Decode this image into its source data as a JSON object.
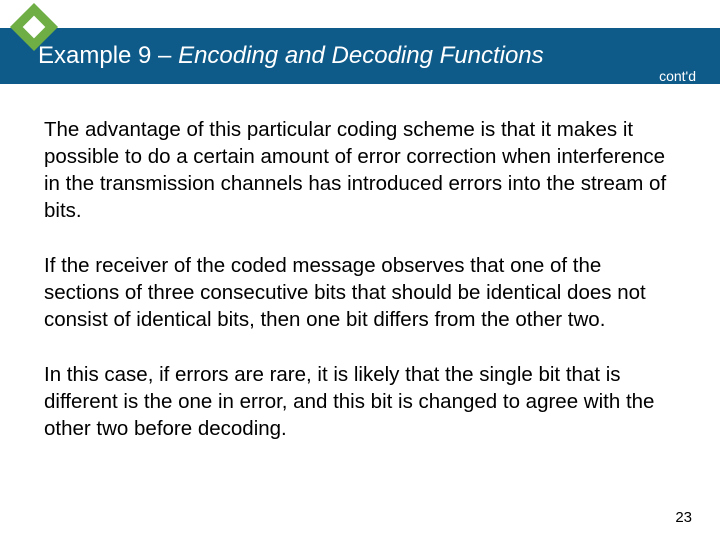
{
  "header": {
    "title_prefix": "Example 9 – ",
    "title_italic": "Encoding and Decoding Functions",
    "contd": "cont'd",
    "bar_color": "#0e5b8a",
    "diamond_color": "#6fae45"
  },
  "body": {
    "paragraphs": [
      "The advantage of this particular coding scheme is that it makes it possible to do a certain amount of error correction when interference in the transmission channels has introduced errors into the stream of bits.",
      "If the receiver of the coded message observes that one of the sections of three consecutive bits that should be identical does not consist of identical bits, then one bit differs from the other two.",
      "In this case, if errors are rare, it is likely that the single bit that is different is the one in error, and this bit is changed to agree with the other two before decoding."
    ],
    "text_color": "#000000",
    "font_size_pt": 15,
    "background_color": "#ffffff"
  },
  "footer": {
    "page_number": "23"
  }
}
